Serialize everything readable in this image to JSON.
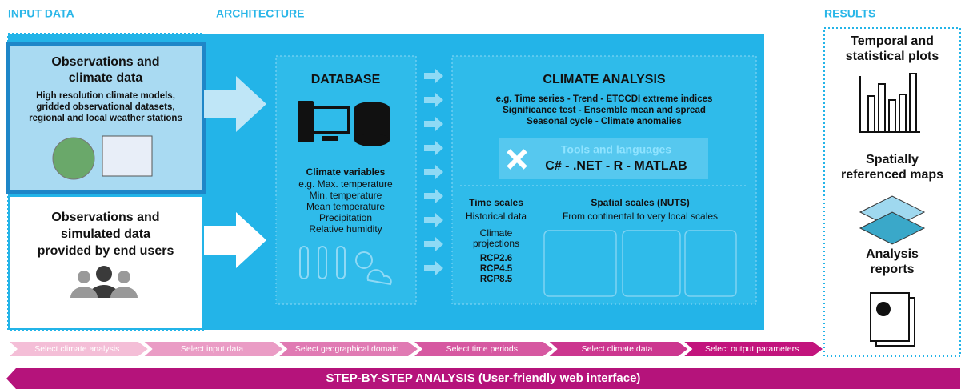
{
  "sections": {
    "input": "INPUT DATA",
    "architecture": "ARCHITECTURE",
    "results": "RESULTS"
  },
  "input": [
    {
      "title": [
        "Observations and",
        "climate data"
      ],
      "text": [
        "High resolution climate models,",
        "gridded observational datasets,",
        "regional and local weather stations"
      ]
    },
    {
      "title": [
        "Observations and",
        "simulated data",
        "provided by end users"
      ]
    }
  ],
  "database": {
    "title": "DATABASE",
    "subtitle": "Climate variables",
    "items": [
      "e.g. Max. temperature",
      "Min. temperature",
      "Mean temperature",
      "Precipitation",
      "Relative humidity"
    ]
  },
  "analysis": {
    "title": "CLIMATE ANALYSIS",
    "lines": [
      "e.g. Time series - Trend - ETCCDI extreme indices",
      "Significance test - Ensemble mean and spread",
      "Seasonal cycle - Climate anomalies"
    ],
    "tools_title": "Tools and languages",
    "tools": "C# - .NET - R - MATLAB"
  },
  "time_scales": {
    "title": "Time scales",
    "historical": "Historical data",
    "projections": [
      "Climate",
      "projections"
    ],
    "rcp": [
      "RCP2.6",
      "RCP4.5",
      "RCP8.5"
    ]
  },
  "spatial_scales": {
    "title": "Spatial scales (NUTS)",
    "text": "From continental to very local scales"
  },
  "results": [
    {
      "title": [
        "Temporal and",
        "statistical plots"
      ]
    },
    {
      "title": [
        "Spatially",
        "referenced maps"
      ]
    },
    {
      "title": [
        "Analysis",
        "reports"
      ]
    }
  ],
  "steps": [
    "Select climate analysis",
    "Select input data",
    "Select geographical domain",
    "Select time periods",
    "Select climate data",
    "Select output parameters"
  ],
  "banner": "STEP-BY-STEP ANALYSIS (User-friendly web interface)"
}
